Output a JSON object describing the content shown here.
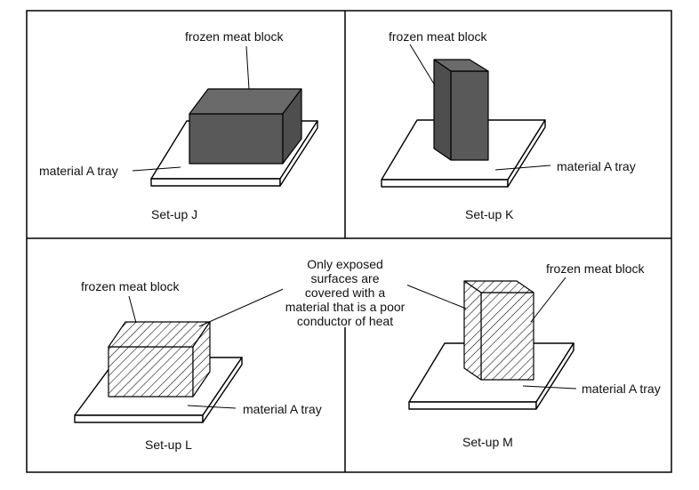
{
  "panels": {
    "j": {
      "caption": "Set-up J",
      "block_label": "frozen meat block",
      "tray_label": "material A tray"
    },
    "k": {
      "caption": "Set-up K",
      "block_label": "frozen meat block",
      "tray_label": "material A tray"
    },
    "l": {
      "caption": "Set-up L",
      "block_label": "frozen meat block",
      "tray_label": "material A tray"
    },
    "m": {
      "caption": "Set-up M",
      "block_label": "frozen meat block",
      "tray_label": "material A tray"
    }
  },
  "note": {
    "lines": [
      "Only exposed",
      "surfaces are",
      "covered with a",
      "material that is a poor",
      "conductor of heat"
    ]
  },
  "colors": {
    "meat_fill": "#595959",
    "meat_top": "#6a6a6a",
    "meat_side": "#4e4e4e",
    "hatch_line": "#000000",
    "border": "#000000"
  }
}
